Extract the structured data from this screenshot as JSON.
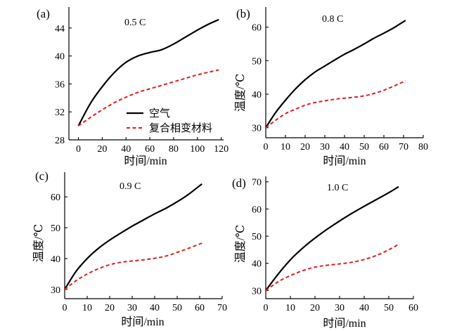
{
  "legend": {
    "air_label": "空气",
    "pcm_label": "复合相变材料"
  },
  "colors": {
    "air": "#000000",
    "pcm": "#e31a1c"
  },
  "chart_data": [
    {
      "type": "line",
      "panel_label": "(a)",
      "title": "0.5 C",
      "xlabel": "时间/min",
      "ylabel": "",
      "xlim": [
        -8,
        122
      ],
      "ylim": [
        28,
        47
      ],
      "xticks": [
        0,
        20,
        40,
        60,
        80,
        100,
        120
      ],
      "yticks": [
        28,
        32,
        36,
        40,
        44
      ],
      "legend_position": "center-right",
      "series": [
        {
          "name": "空气",
          "style": "solid",
          "x": [
            0,
            10,
            20,
            30,
            40,
            50,
            60,
            70,
            80,
            90,
            100,
            110,
            118
          ],
          "y": [
            30,
            33.2,
            35.6,
            37.6,
            39.1,
            40.0,
            40.5,
            40.9,
            41.7,
            42.7,
            43.7,
            44.6,
            45.2
          ]
        },
        {
          "name": "复合相变材料",
          "style": "dashed",
          "x": [
            0,
            10,
            20,
            30,
            40,
            50,
            60,
            70,
            80,
            90,
            100,
            110,
            118
          ],
          "y": [
            30,
            31.2,
            32.3,
            33.3,
            34.1,
            34.8,
            35.3,
            35.8,
            36.3,
            36.8,
            37.3,
            37.7,
            38.0
          ]
        }
      ]
    },
    {
      "type": "line",
      "panel_label": "(b)",
      "title": "0.8 C",
      "xlabel": "时间/min",
      "ylabel": "温度/℃",
      "xlim": [
        0,
        80
      ],
      "ylim": [
        27,
        66
      ],
      "xticks": [
        0,
        10,
        20,
        30,
        40,
        50,
        60,
        70,
        80
      ],
      "yticks": [
        30,
        40,
        50,
        60
      ],
      "legend_position": "none",
      "series": [
        {
          "name": "空气",
          "style": "solid",
          "x": [
            0,
            5,
            10,
            15,
            20,
            25,
            30,
            35,
            40,
            45,
            50,
            55,
            60,
            65,
            71
          ],
          "y": [
            30,
            34.5,
            38.2,
            41.5,
            44.3,
            46.6,
            48.4,
            50.2,
            51.9,
            53.4,
            55.0,
            56.7,
            58.2,
            59.8,
            62.0
          ]
        },
        {
          "name": "复合相变材料",
          "style": "dashed",
          "x": [
            0,
            5,
            10,
            15,
            20,
            25,
            30,
            35,
            40,
            45,
            50,
            55,
            60,
            65,
            71
          ],
          "y": [
            30,
            32.2,
            34.2,
            35.5,
            36.7,
            37.5,
            38.0,
            38.5,
            38.8,
            39.1,
            39.5,
            40.2,
            41.2,
            42.4,
            44.0
          ]
        }
      ]
    },
    {
      "type": "line",
      "panel_label": "(c)",
      "title": "0.9 C",
      "xlabel": "时间/min",
      "ylabel": "温度/℃",
      "xlim": [
        0,
        70
      ],
      "ylim": [
        27,
        68
      ],
      "xticks": [
        0,
        10,
        20,
        30,
        40,
        50,
        60,
        70
      ],
      "yticks": [
        30,
        40,
        50,
        60
      ],
      "legend_position": "none",
      "series": [
        {
          "name": "空气",
          "style": "solid",
          "x": [
            0,
            5,
            10,
            15,
            20,
            25,
            30,
            35,
            40,
            45,
            50,
            55,
            61
          ],
          "y": [
            30,
            35.8,
            40.0,
            43.3,
            46.0,
            48.3,
            50.5,
            52.5,
            54.5,
            56.3,
            58.4,
            60.8,
            64.2
          ]
        },
        {
          "name": "复合相变材料",
          "style": "dashed",
          "x": [
            0,
            5,
            10,
            15,
            20,
            25,
            30,
            35,
            40,
            45,
            50,
            55,
            61
          ],
          "y": [
            30,
            32.8,
            35.0,
            36.7,
            38.0,
            38.8,
            39.2,
            39.6,
            40.1,
            40.8,
            42.0,
            43.3,
            45.0
          ]
        }
      ]
    },
    {
      "type": "line",
      "panel_label": "(d)",
      "title": "1.0 C",
      "xlabel": "时间/min",
      "ylabel": "温度/℃",
      "xlim": [
        0,
        60
      ],
      "ylim": [
        27,
        72
      ],
      "xticks": [
        0,
        10,
        20,
        30,
        40,
        50,
        60
      ],
      "yticks": [
        30,
        40,
        50,
        60,
        70
      ],
      "legend_position": "none",
      "series": [
        {
          "name": "空气",
          "style": "solid",
          "x": [
            0,
            5,
            10,
            15,
            20,
            25,
            30,
            35,
            40,
            45,
            50,
            54
          ],
          "y": [
            30,
            36.0,
            41.3,
            45.6,
            49.3,
            52.6,
            55.6,
            58.4,
            61.0,
            63.5,
            66.0,
            68.2
          ]
        },
        {
          "name": "复合相变材料",
          "style": "dashed",
          "x": [
            0,
            5,
            10,
            15,
            20,
            25,
            30,
            35,
            40,
            45,
            50,
            54
          ],
          "y": [
            30,
            33.2,
            35.5,
            37.3,
            38.6,
            39.3,
            39.8,
            40.4,
            41.4,
            42.9,
            45.0,
            47.0
          ]
        }
      ]
    }
  ]
}
